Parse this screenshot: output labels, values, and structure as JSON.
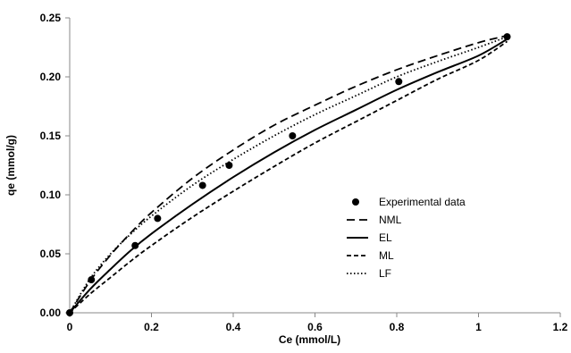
{
  "chart_data": {
    "type": "scatter",
    "title": "",
    "xlabel": "Ce (mmol/L)",
    "ylabel": "qe (mmol/g)",
    "xlim": [
      0,
      1.2
    ],
    "ylim": [
      0,
      0.25
    ],
    "x_ticks": [
      0,
      0.2,
      0.4,
      0.6,
      0.8,
      1,
      1.2
    ],
    "x_tick_labels": [
      "0",
      "0.2",
      "0.4",
      "0.6",
      "0.8",
      "1",
      "1.2"
    ],
    "y_ticks": [
      0,
      0.05,
      0.1,
      0.15,
      0.2,
      0.25
    ],
    "y_tick_labels": [
      "0.00",
      "0.05",
      "0.10",
      "0.15",
      "0.20",
      "0.25"
    ],
    "grid": false,
    "legend_position": "center-right",
    "series": [
      {
        "name": "Experimental data",
        "kind": "markers",
        "color": "#000000",
        "x": [
          0,
          0.053,
          0.16,
          0.215,
          0.325,
          0.39,
          0.545,
          0.805,
          1.07
        ],
        "y": [
          0,
          0.028,
          0.057,
          0.08,
          0.108,
          0.125,
          0.15,
          0.196,
          0.234
        ]
      },
      {
        "name": "NML",
        "kind": "line",
        "dash": "long-dash",
        "color": "#000000",
        "x": [
          0,
          0.05,
          0.1,
          0.15,
          0.2,
          0.3,
          0.4,
          0.5,
          0.6,
          0.7,
          0.8,
          0.9,
          1.0,
          1.07
        ],
        "y": [
          0,
          0.027,
          0.049,
          0.068,
          0.085,
          0.114,
          0.138,
          0.159,
          0.176,
          0.192,
          0.206,
          0.218,
          0.229,
          0.235
        ]
      },
      {
        "name": "EL",
        "kind": "line",
        "dash": "solid",
        "color": "#000000",
        "x": [
          0,
          0.05,
          0.1,
          0.15,
          0.2,
          0.3,
          0.4,
          0.5,
          0.6,
          0.7,
          0.8,
          0.9,
          1.0,
          1.07
        ],
        "y": [
          0,
          0.02,
          0.037,
          0.053,
          0.067,
          0.092,
          0.115,
          0.136,
          0.155,
          0.172,
          0.189,
          0.204,
          0.218,
          0.232
        ]
      },
      {
        "name": "ML",
        "kind": "line",
        "dash": "short-dash",
        "color": "#000000",
        "x": [
          0,
          0.05,
          0.1,
          0.15,
          0.2,
          0.3,
          0.4,
          0.5,
          0.6,
          0.7,
          0.8,
          0.9,
          1.0,
          1.07
        ],
        "y": [
          0,
          0.016,
          0.03,
          0.044,
          0.057,
          0.081,
          0.103,
          0.124,
          0.144,
          0.162,
          0.18,
          0.198,
          0.214,
          0.23
        ]
      },
      {
        "name": "LF",
        "kind": "line",
        "dash": "dotted",
        "color": "#000000",
        "x": [
          0,
          0.05,
          0.1,
          0.15,
          0.2,
          0.3,
          0.4,
          0.5,
          0.6,
          0.7,
          0.8,
          0.9,
          1.0,
          1.07
        ],
        "y": [
          0,
          0.029,
          0.05,
          0.067,
          0.082,
          0.108,
          0.13,
          0.15,
          0.168,
          0.184,
          0.2,
          0.213,
          0.225,
          0.234
        ]
      }
    ]
  }
}
